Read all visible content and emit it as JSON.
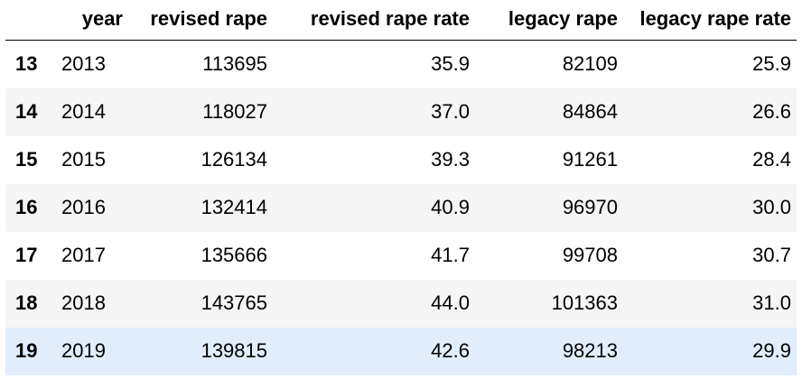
{
  "table": {
    "columns": [
      "",
      "year",
      "revised rape",
      "revised rape rate",
      "legacy rape",
      "legacy rape rate"
    ],
    "rows": [
      {
        "index": "13",
        "year": "2013",
        "revised_rape": "113695",
        "revised_rape_rate": "35.9",
        "legacy_rape": "82109",
        "legacy_rape_rate": "25.9"
      },
      {
        "index": "14",
        "year": "2014",
        "revised_rape": "118027",
        "revised_rape_rate": "37.0",
        "legacy_rape": "84864",
        "legacy_rape_rate": "26.6"
      },
      {
        "index": "15",
        "year": "2015",
        "revised_rape": "126134",
        "revised_rape_rate": "39.3",
        "legacy_rape": "91261",
        "legacy_rape_rate": "28.4"
      },
      {
        "index": "16",
        "year": "2016",
        "revised_rape": "132414",
        "revised_rape_rate": "40.9",
        "legacy_rape": "96970",
        "legacy_rape_rate": "30.0"
      },
      {
        "index": "17",
        "year": "2017",
        "revised_rape": "135666",
        "revised_rape_rate": "41.7",
        "legacy_rape": "99708",
        "legacy_rape_rate": "30.7"
      },
      {
        "index": "18",
        "year": "2018",
        "revised_rape": "143765",
        "revised_rape_rate": "44.0",
        "legacy_rape": "101363",
        "legacy_rape_rate": "31.0"
      },
      {
        "index": "19",
        "year": "2019",
        "revised_rape": "139815",
        "revised_rape_rate": "42.6",
        "legacy_rape": "98213",
        "legacy_rape_rate": "29.9"
      }
    ],
    "highlighted_row_index": "19",
    "colors": {
      "stripe": "#f5f5f5",
      "highlight": "#e1edfa",
      "text": "#000000"
    }
  }
}
